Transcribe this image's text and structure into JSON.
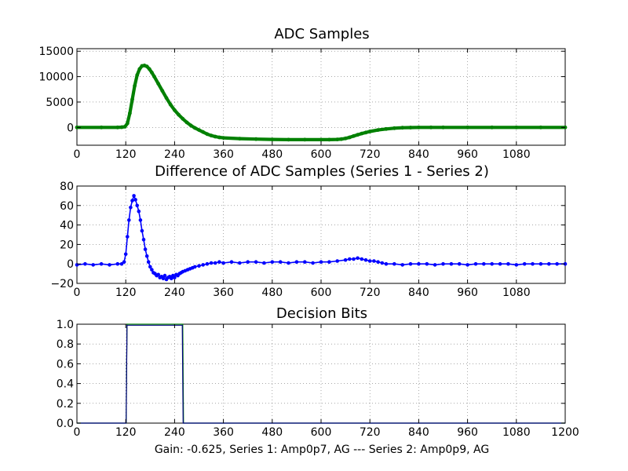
{
  "colors": {
    "series_green": "#008000",
    "series_blue": "#0000ff",
    "series_navy": "#000080"
  },
  "footer": {
    "xlabel": "Gain: -0.625, Series 1: Amp0p7, AG --- Series 2: Amp0p9, AG"
  },
  "chart_data": [
    {
      "type": "scatter",
      "title": "ADC Samples",
      "xlim": [
        0,
        1200
      ],
      "ylim": [
        -3500,
        15500
      ],
      "x_ticks": [
        0,
        120,
        240,
        360,
        480,
        600,
        720,
        840,
        960,
        1080
      ],
      "y_ticks": [
        0,
        5000,
        10000,
        15000
      ],
      "series": [
        {
          "color": "#008000",
          "marker": "point",
          "x": [
            0,
            60,
            100,
            110,
            118,
            124,
            130,
            136,
            142,
            148,
            154,
            160,
            166,
            172,
            178,
            184,
            190,
            200,
            210,
            220,
            230,
            240,
            250,
            260,
            270,
            280,
            290,
            300,
            310,
            320,
            330,
            340,
            350,
            360,
            400,
            440,
            480,
            520,
            560,
            600,
            620,
            640,
            650,
            660,
            670,
            680,
            690,
            700,
            710,
            720,
            740,
            760,
            780,
            800,
            820,
            840,
            870,
            900,
            960,
            1020,
            1080,
            1140,
            1200
          ],
          "y": [
            0,
            0,
            0,
            50,
            150,
            800,
            2800,
            5500,
            8200,
            10300,
            11500,
            12100,
            12200,
            12000,
            11500,
            10800,
            10000,
            8600,
            7200,
            5800,
            4500,
            3400,
            2500,
            1700,
            1000,
            400,
            -100,
            -500,
            -900,
            -1300,
            -1600,
            -1800,
            -1950,
            -2050,
            -2200,
            -2300,
            -2350,
            -2400,
            -2400,
            -2400,
            -2400,
            -2350,
            -2300,
            -2150,
            -1950,
            -1700,
            -1450,
            -1200,
            -1000,
            -800,
            -500,
            -300,
            -150,
            -60,
            -20,
            0,
            0,
            0,
            0,
            0,
            0,
            0,
            0
          ]
        }
      ]
    },
    {
      "type": "scatter",
      "title": "Difference of ADC Samples (Series 1 - Series 2)",
      "xlim": [
        0,
        1200
      ],
      "ylim": [
        -20,
        80
      ],
      "x_ticks": [
        0,
        120,
        240,
        360,
        480,
        600,
        720,
        840,
        960,
        1080
      ],
      "y_ticks": [
        -20,
        0,
        20,
        40,
        60,
        80
      ],
      "series": [
        {
          "color": "#0000ff",
          "marker": "dot",
          "x": [
            0,
            20,
            40,
            60,
            80,
            100,
            110,
            116,
            120,
            124,
            128,
            132,
            136,
            140,
            144,
            148,
            152,
            156,
            160,
            164,
            168,
            172,
            176,
            180,
            184,
            188,
            192,
            196,
            200,
            204,
            208,
            212,
            216,
            220,
            224,
            228,
            232,
            236,
            240,
            244,
            248,
            252,
            256,
            260,
            266,
            272,
            278,
            284,
            290,
            300,
            310,
            320,
            330,
            340,
            350,
            360,
            380,
            400,
            420,
            440,
            460,
            480,
            500,
            520,
            540,
            560,
            580,
            600,
            620,
            640,
            660,
            670,
            680,
            690,
            700,
            710,
            720,
            730,
            740,
            750,
            760,
            780,
            800,
            820,
            840,
            860,
            880,
            900,
            920,
            940,
            960,
            980,
            1000,
            1020,
            1040,
            1060,
            1080,
            1100,
            1120,
            1140,
            1160,
            1180,
            1200
          ],
          "y": [
            -1,
            0,
            -1,
            0,
            -1,
            0,
            0,
            2,
            10,
            28,
            45,
            58,
            65,
            70,
            66,
            60,
            54,
            45,
            34,
            25,
            15,
            8,
            2,
            -3,
            -6,
            -9,
            -10,
            -12,
            -11,
            -14,
            -13,
            -15,
            -12,
            -16,
            -14,
            -13,
            -15,
            -12,
            -14,
            -11,
            -12,
            -10,
            -9,
            -8,
            -7,
            -6,
            -5,
            -4,
            -3,
            -2,
            -1,
            0,
            1,
            1,
            2,
            1,
            2,
            1,
            2,
            2,
            1,
            2,
            2,
            1,
            2,
            2,
            1,
            2,
            2,
            3,
            4,
            5,
            5,
            6,
            5,
            4,
            3,
            3,
            2,
            1,
            0,
            0,
            -1,
            0,
            0,
            0,
            -1,
            0,
            0,
            0,
            -1,
            0,
            0,
            0,
            0,
            0,
            -1,
            0,
            0,
            0,
            0,
            0,
            0
          ]
        }
      ]
    },
    {
      "type": "line",
      "title": "Decision Bits",
      "xlim": [
        0,
        1200
      ],
      "ylim": [
        0,
        1
      ],
      "x_ticks": [
        0,
        120,
        240,
        360,
        480,
        600,
        720,
        840,
        960,
        1080,
        1200
      ],
      "y_ticks": [
        0,
        0.2,
        0.4,
        0.6,
        0.8,
        1.0
      ],
      "y_tick_labels": [
        "0.0",
        "0.2",
        "0.4",
        "0.6",
        "0.8",
        "1.0"
      ],
      "series": [
        {
          "color": "#008000",
          "x": [
            0,
            121,
            123,
            260,
            262,
            1200
          ],
          "y": [
            0,
            0,
            1,
            1,
            0,
            0
          ]
        },
        {
          "color": "#000080",
          "x": [
            0,
            121,
            123,
            259,
            261,
            1200
          ],
          "y": [
            0,
            0,
            0.99,
            0.99,
            0,
            0
          ]
        }
      ]
    }
  ]
}
